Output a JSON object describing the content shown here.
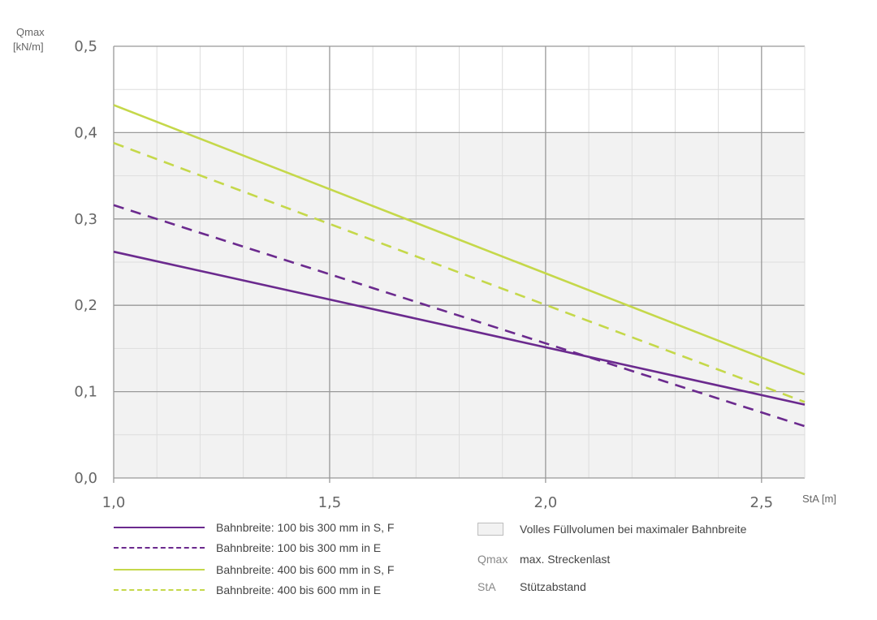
{
  "chart_data": {
    "type": "line",
    "y_unit_label": [
      "Qmax",
      "[kN/m]"
    ],
    "x_unit_label": "StA [m]",
    "xlim": [
      1.0,
      2.6
    ],
    "ylim": [
      0.0,
      0.5
    ],
    "x_ticks": [
      1.0,
      1.5,
      2.0,
      2.5
    ],
    "x_tick_labels": [
      "1,0",
      "1,5",
      "2,0",
      "2,5"
    ],
    "y_ticks": [
      0.0,
      0.1,
      0.2,
      0.3,
      0.4,
      0.5
    ],
    "y_tick_labels": [
      "0,0",
      "0,1",
      "0,2",
      "0,3",
      "0,4",
      "0,5"
    ],
    "x_minor_step": 0.1,
    "y_minor_step": 0.05,
    "grid": true,
    "shaded_region": {
      "y_range": [
        0.0,
        0.4
      ],
      "color": "#f2f2f2",
      "label": "Volles Füllvolumen bei maximaler Bahnbreite"
    },
    "series": [
      {
        "name": "Bahnbreite: 100 bis 300 mm in S, F",
        "color": "#6b2a8e",
        "dash": "solid",
        "x": [
          1.0,
          2.6
        ],
        "y": [
          0.262,
          0.085
        ]
      },
      {
        "name": "Bahnbreite: 100 bis 300 mm in E",
        "color": "#6b2a8e",
        "dash": "dashed",
        "x": [
          1.0,
          2.6
        ],
        "y": [
          0.316,
          0.06
        ]
      },
      {
        "name": "Bahnbreite: 400 bis 600 mm in S, F",
        "color": "#c5d84a",
        "dash": "solid",
        "x": [
          1.0,
          2.6
        ],
        "y": [
          0.432,
          0.12
        ]
      },
      {
        "name": "Bahnbreite: 400 bis 600 mm in E",
        "color": "#c5d84a",
        "dash": "dashed",
        "x": [
          1.0,
          2.6
        ],
        "y": [
          0.388,
          0.088
        ]
      }
    ]
  },
  "legend_right": {
    "area_label": "Volles Füllvolumen bei maximaler Bahnbreite",
    "abbreviations": [
      {
        "abbr": "Qmax",
        "text": "max. Streckenlast"
      },
      {
        "abbr": "StA",
        "text": "Stützabstand"
      }
    ]
  }
}
